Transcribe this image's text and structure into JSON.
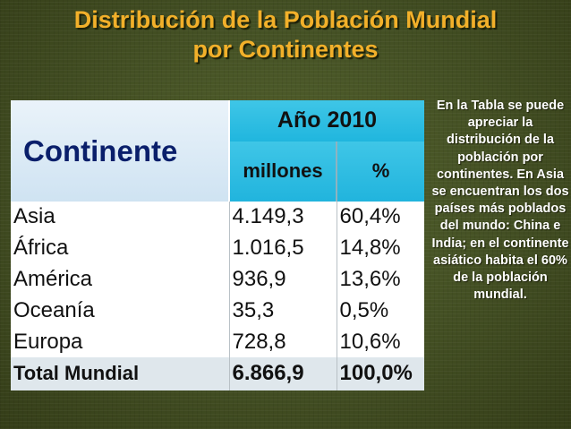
{
  "title": {
    "line1": "Distribución de la Población Mundial",
    "line2": "por Continentes"
  },
  "table": {
    "header_continent": "Continente",
    "header_year": "Año 2010",
    "header_millions": "millones",
    "header_percent": "%",
    "rows": [
      {
        "continent": "Asia",
        "millions": "4.149,3",
        "percent": "60,4%"
      },
      {
        "continent": "África",
        "millions": "1.016,5",
        "percent": "14,8%"
      },
      {
        "continent": "América",
        "millions": "936,9",
        "percent": "13,6%"
      },
      {
        "continent": "Oceanía",
        "millions": "35,3",
        "percent": "0,5%"
      },
      {
        "continent": "Europa",
        "millions": "728,8",
        "percent": "10,6%"
      }
    ],
    "total": {
      "continent": "Total Mundial",
      "millions": "6.866,9",
      "percent": "100,0%"
    }
  },
  "side_note": "En la Tabla se puede apreciar la distribución de la población por continentes. En Asia se encuentran los dos países más poblados del mundo: China e India; en el continente asiático habita el 60% de la población mundial.",
  "colors": {
    "background": "#434f23",
    "title": "#f2b02a",
    "header_cyan": "#20b6de",
    "header_light": "#cfe3f2",
    "continent_header_text": "#0a1f6b",
    "total_row": "#dfe7ec"
  }
}
